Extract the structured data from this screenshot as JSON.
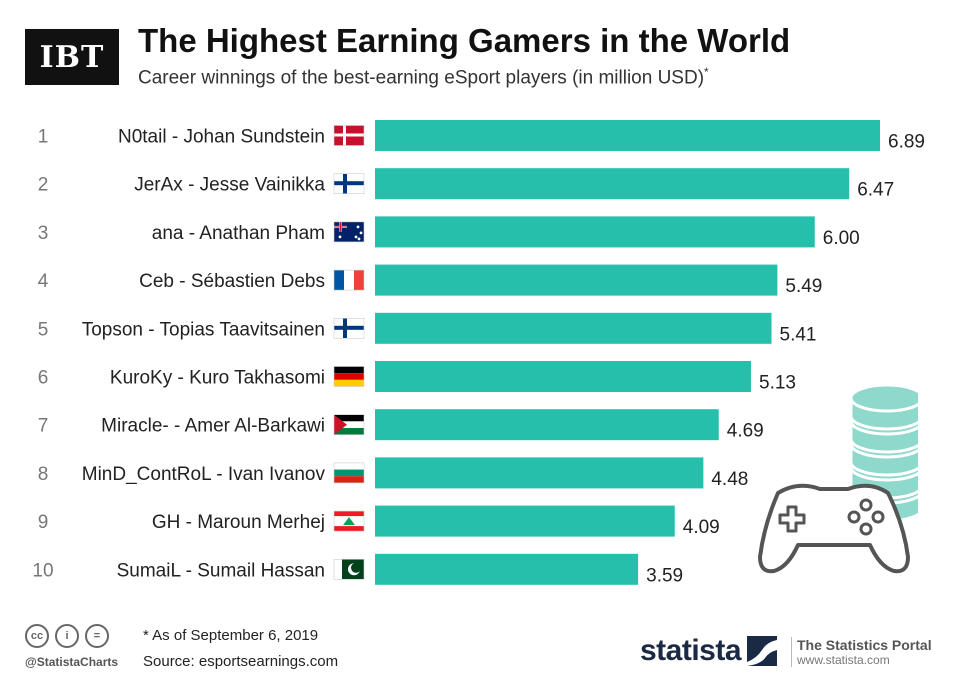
{
  "header": {
    "logo": "IBT",
    "title": "The Highest Earning Gamers in the World",
    "subtitle": "Career winnings of the best-earning eSport players (in million USD)",
    "subtitle_mark": "*"
  },
  "chart_data": {
    "type": "bar",
    "orientation": "horizontal",
    "title": "The Highest Earning Gamers in the World",
    "subtitle": "Career winnings of the best-earning eSport players (in million USD)*",
    "xlabel": "",
    "ylabel": "",
    "xlim": [
      0,
      6.89
    ],
    "grid": false,
    "bar_color": "#26bfac",
    "ranks": [
      "1",
      "2",
      "3",
      "4",
      "5",
      "6",
      "7",
      "8",
      "9",
      "10"
    ],
    "categories": [
      "N0tail - Johan Sundstein",
      "JerAx - Jesse Vainikka",
      "ana - Anathan Pham",
      "Ceb - Sébastien Debs",
      "Topson - Topias Taavitsainen",
      "KuroKy - Kuro Takhasomi",
      "Miracle- - Amer Al-Barkawi",
      "MinD_ContRoL - Ivan Ivanov",
      "GH - Maroun Merhej",
      "SumaiL - Sumail Hassan"
    ],
    "flags": [
      "denmark",
      "finland",
      "australia",
      "france",
      "finland",
      "germany",
      "jordan",
      "bulgaria",
      "lebanon",
      "pakistan"
    ],
    "values": [
      6.89,
      6.47,
      6.0,
      5.49,
      5.41,
      5.13,
      4.69,
      4.48,
      4.09,
      3.59
    ],
    "value_labels": [
      "6.89",
      "6.47",
      "6.00",
      "5.49",
      "5.41",
      "5.13",
      "4.69",
      "4.48",
      "4.09",
      "3.59"
    ]
  },
  "illustration": {
    "icons": [
      "coin-stack-icon",
      "gamepad-icon"
    ]
  },
  "footer": {
    "note": "* As of September 6, 2019",
    "source": "Source: esportsearnings.com",
    "handle": "@StatistaCharts",
    "cc_icons": [
      "cc",
      "i",
      "="
    ],
    "brand": "statista",
    "portal_name": "The Statistics Portal",
    "portal_url": "www.statista.com"
  },
  "colors": {
    "bar": "#26bfac",
    "brand": "#1a2a44",
    "logo_bg": "#111111"
  }
}
